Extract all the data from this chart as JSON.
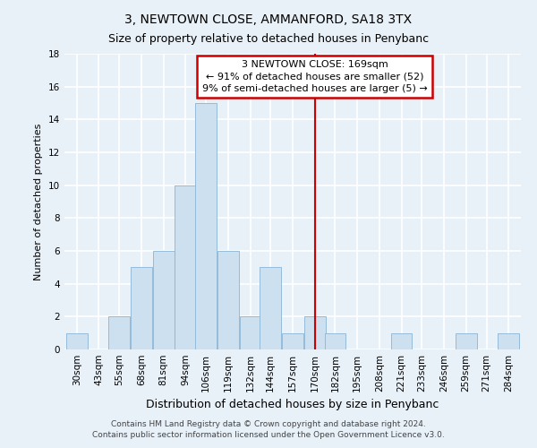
{
  "title": "3, NEWTOWN CLOSE, AMMANFORD, SA18 3TX",
  "subtitle": "Size of property relative to detached houses in Penybanc",
  "xlabel": "Distribution of detached houses by size in Penybanc",
  "ylabel": "Number of detached properties",
  "footer1": "Contains HM Land Registry data © Crown copyright and database right 2024.",
  "footer2": "Contains public sector information licensed under the Open Government Licence v3.0.",
  "bar_labels": [
    "30sqm",
    "43sqm",
    "55sqm",
    "68sqm",
    "81sqm",
    "94sqm",
    "106sqm",
    "119sqm",
    "132sqm",
    "144sqm",
    "157sqm",
    "170sqm",
    "182sqm",
    "195sqm",
    "208sqm",
    "221sqm",
    "233sqm",
    "246sqm",
    "259sqm",
    "271sqm",
    "284sqm"
  ],
  "bar_values": [
    1,
    0,
    2,
    5,
    6,
    10,
    15,
    6,
    2,
    5,
    1,
    2,
    1,
    0,
    0,
    1,
    0,
    0,
    1,
    0,
    1
  ],
  "bar_color": "#cce0f0",
  "bar_edge_color": "#8ab4d4",
  "annotation_box_color": "#cc0000",
  "vline_color": "#cc0000",
  "ylim": [
    0,
    18
  ],
  "yticks": [
    0,
    2,
    4,
    6,
    8,
    10,
    12,
    14,
    16,
    18
  ],
  "bg_color": "#e8f0f8",
  "plot_bg_color": "#e8f0f8",
  "grid_color": "#ffffff",
  "centers": [
    30,
    43,
    55,
    68,
    81,
    94,
    106,
    119,
    132,
    144,
    157,
    170,
    182,
    195,
    208,
    221,
    233,
    246,
    259,
    271,
    284
  ],
  "title_fontsize": 10,
  "subtitle_fontsize": 9,
  "xlabel_fontsize": 9,
  "ylabel_fontsize": 8,
  "tick_fontsize": 7.5,
  "footer_fontsize": 6.5,
  "annot_fontsize": 8
}
